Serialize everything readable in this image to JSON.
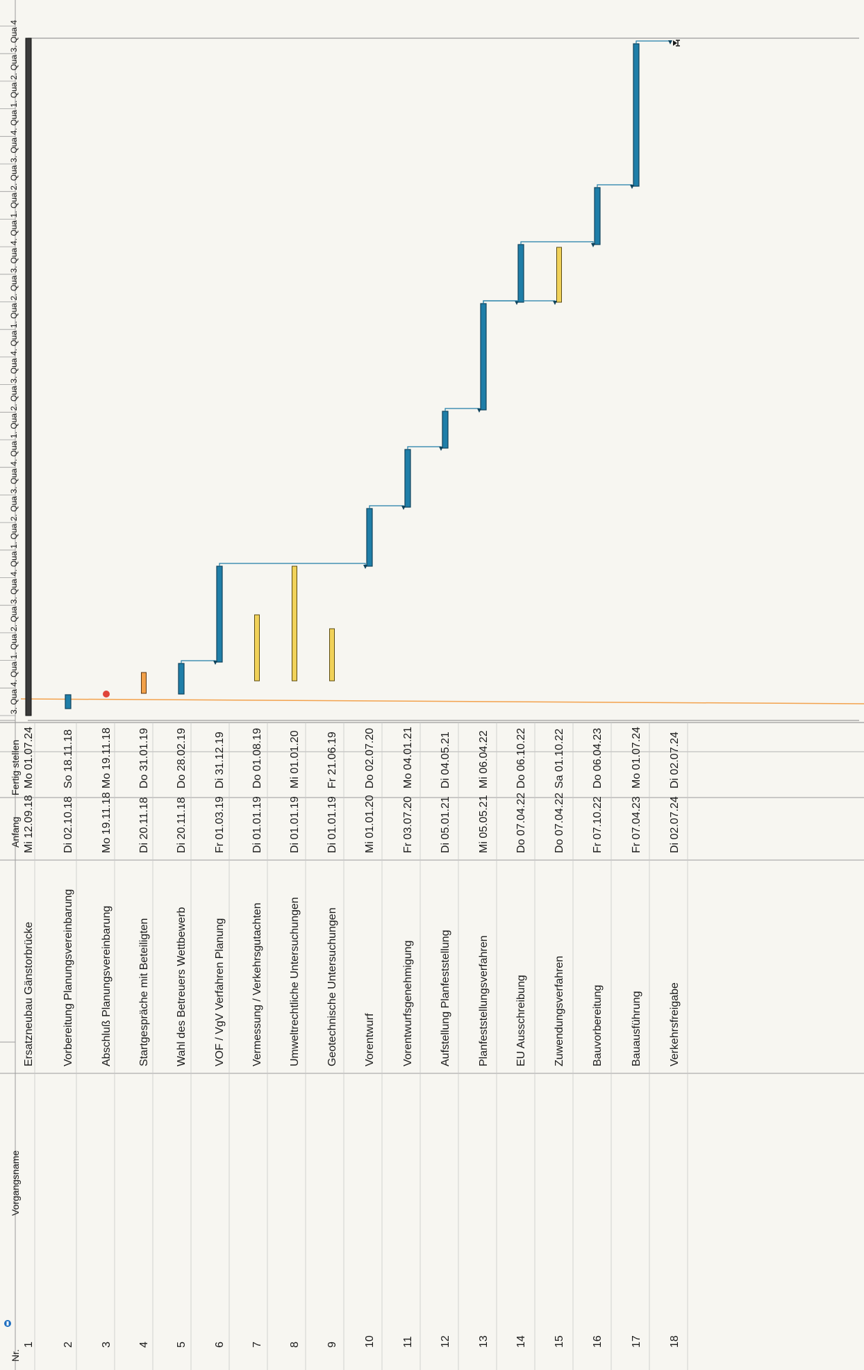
{
  "columns": {
    "nr": "Nr.",
    "name": "Vorgangsname",
    "start": "Anfang",
    "finish": "Fertig stellen"
  },
  "timescale": [
    "3. Qua",
    "4. Qua",
    "1. Qua",
    "2. Qua",
    "3. Qua",
    "4. Qua",
    "1. Qua",
    "2. Qua",
    "3. Qua",
    "4. Qua",
    "1. Qua",
    "2. Qua",
    "3. Qua",
    "4. Qua",
    "1. Qua",
    "2. Qua",
    "3. Qua",
    "4. Qua",
    "1. Qua",
    "2. Qua",
    "3. Qua",
    "4. Qua",
    "1. Qua",
    "2. Qua",
    "3. Qua",
    "4"
  ],
  "tasks": [
    {
      "nr": "1",
      "name": "Ersatzneubau Gänstorbrücke",
      "start": "Mi 12.09.18",
      "finish": "Mo 01.07.24",
      "type": "summary"
    },
    {
      "nr": "2",
      "name": "Vorbereitung Planungsvereinbarung",
      "start": "Di 02.10.18",
      "finish": "So 18.11.18",
      "type": "task"
    },
    {
      "nr": "3",
      "name": "Abschluß Planungsvereinbarung",
      "start": "Mo 19.11.18",
      "finish": "Mo 19.11.18",
      "type": "milestone"
    },
    {
      "nr": "4",
      "name": "Startgespräche mit Beteiligten",
      "start": "Di 20.11.18",
      "finish": "Do 31.01.19",
      "type": "orange"
    },
    {
      "nr": "5",
      "name": "Wahl des Betreuers Wettbewerb",
      "start": "Di 20.11.18",
      "finish": "Do 28.02.19",
      "type": "task"
    },
    {
      "nr": "6",
      "name": "VOF / VgV Verfahren Planung",
      "start": "Fr 01.03.19",
      "finish": "Di 31.12.19",
      "type": "task"
    },
    {
      "nr": "7",
      "name": "Vermessung / Verkehrsgutachten",
      "start": "Di 01.01.19",
      "finish": "Do 01.08.19",
      "type": "yellow"
    },
    {
      "nr": "8",
      "name": "Umweltrechtliche Untersuchungen",
      "start": "Di 01.01.19",
      "finish": "Mi 01.01.20",
      "type": "yellow"
    },
    {
      "nr": "9",
      "name": "Geotechnische Untersuchungen",
      "start": "Di 01.01.19",
      "finish": "Fr 21.06.19",
      "type": "yellow"
    },
    {
      "nr": "10",
      "name": "Vorentwurf",
      "start": "Mi 01.01.20",
      "finish": "Do 02.07.20",
      "type": "task"
    },
    {
      "nr": "11",
      "name": "Vorentwurfsgenehmigung",
      "start": "Fr 03.07.20",
      "finish": "Mo 04.01.21",
      "type": "task"
    },
    {
      "nr": "12",
      "name": "Aufstellung Planfeststellung",
      "start": "Di 05.01.21",
      "finish": "Di 04.05.21",
      "type": "task"
    },
    {
      "nr": "13",
      "name": "Planfeststellungsverfahren",
      "start": "Mi 05.05.21",
      "finish": "Mi 06.04.22",
      "type": "task"
    },
    {
      "nr": "14",
      "name": "EU Ausschreibung",
      "start": "Do 07.04.22",
      "finish": "Do 06.10.22",
      "type": "task"
    },
    {
      "nr": "15",
      "name": "Zuwendungsverfahren",
      "start": "Do 07.04.22",
      "finish": "Sa 01.10.22",
      "type": "yellow"
    },
    {
      "nr": "16",
      "name": "Bauvorbereitung",
      "start": "Fr 07.10.22",
      "finish": "Do 06.04.23",
      "type": "task"
    },
    {
      "nr": "17",
      "name": "Bauausführung",
      "start": "Fr 07.04.23",
      "finish": "Mo 01.07.24",
      "type": "task"
    },
    {
      "nr": "18",
      "name": "Verkehrsfreigabe",
      "start": "Di 02.07.24",
      "finish": "Di 02.07.24",
      "type": "end-milestone"
    }
  ],
  "colors": {
    "task": "#1f7ea8",
    "task_edge": "#10435c",
    "summary": "#3a3a3a",
    "yellow": "#f1d25a",
    "orange": "#f2a14a",
    "milestone": "#e0453a",
    "status_line": "#f3a24d",
    "grid": "#9b9b9b",
    "header_icon": "#1f6fc0"
  }
}
